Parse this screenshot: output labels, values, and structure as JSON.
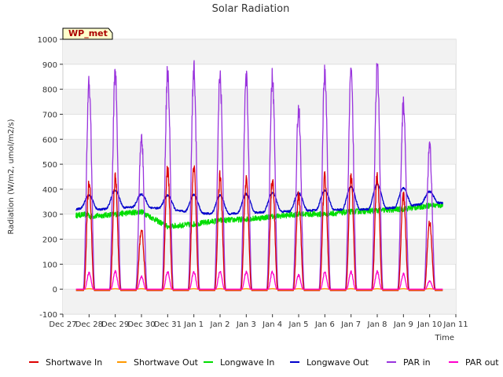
{
  "chart_data": {
    "type": "line",
    "title": "Solar Radiation",
    "xlabel": "Time",
    "ylabel": "Radiation (W/m2, umol/m2/s)",
    "badge": "WP_met",
    "ylim": [
      -100,
      1000
    ],
    "yticks": [
      -100,
      0,
      100,
      200,
      300,
      400,
      500,
      600,
      700,
      800,
      900,
      1000
    ],
    "xlim": [
      0,
      15
    ],
    "xticks": [
      "Dec 27",
      "Dec 28",
      "Dec 29",
      "Dec 30",
      "Dec 31",
      "Jan 1",
      "Jan 2",
      "Jan 3",
      "Jan 4",
      "Jan 5",
      "Jan 6",
      "Jan 7",
      "Jan 8",
      "Jan 9",
      "Jan 10",
      "Jan 11"
    ],
    "grid": "horizontal bands",
    "legend_position": "bottom",
    "x_range_data": [
      0.5,
      14.5
    ],
    "days": [
      1,
      2,
      3,
      4,
      5,
      6,
      7,
      8,
      9,
      10,
      11,
      12,
      13,
      14
    ],
    "series": [
      {
        "name": "Shortwave In",
        "color": "#dd0000",
        "daily_peak": [
          450,
          470,
          255,
          505,
          515,
          478,
          470,
          470,
          395,
          480,
          478,
          485,
          400,
          290
        ]
      },
      {
        "name": "Shortwave Out",
        "color": "#ff9900",
        "daily_peak": [
          2,
          2,
          2,
          2,
          2,
          2,
          2,
          2,
          2,
          2,
          2,
          2,
          2,
          2
        ]
      },
      {
        "name": "Longwave In",
        "color": "#00dd00",
        "daily_mean": [
          290,
          300,
          310,
          250,
          260,
          275,
          280,
          290,
          300,
          300,
          310,
          315,
          320,
          335
        ]
      },
      {
        "name": "Longwave Out",
        "color": "#0000cc",
        "daily_base": [
          315,
          325,
          330,
          320,
          305,
          300,
          305,
          310,
          312,
          318,
          318,
          320,
          330,
          345
        ],
        "daily_peak": [
          375,
          395,
          380,
          375,
          378,
          375,
          380,
          385,
          385,
          395,
          410,
          420,
          405,
          390
        ]
      },
      {
        "name": "PAR in",
        "color": "#9933dd",
        "daily_peak": [
          860,
          905,
          645,
          910,
          925,
          895,
          885,
          890,
          760,
          920,
          905,
          930,
          780,
          600
        ]
      },
      {
        "name": "PAR out",
        "color": "#ff00cc",
        "daily_peak": [
          70,
          75,
          55,
          75,
          75,
          75,
          75,
          75,
          60,
          72,
          75,
          75,
          65,
          35
        ]
      }
    ]
  }
}
